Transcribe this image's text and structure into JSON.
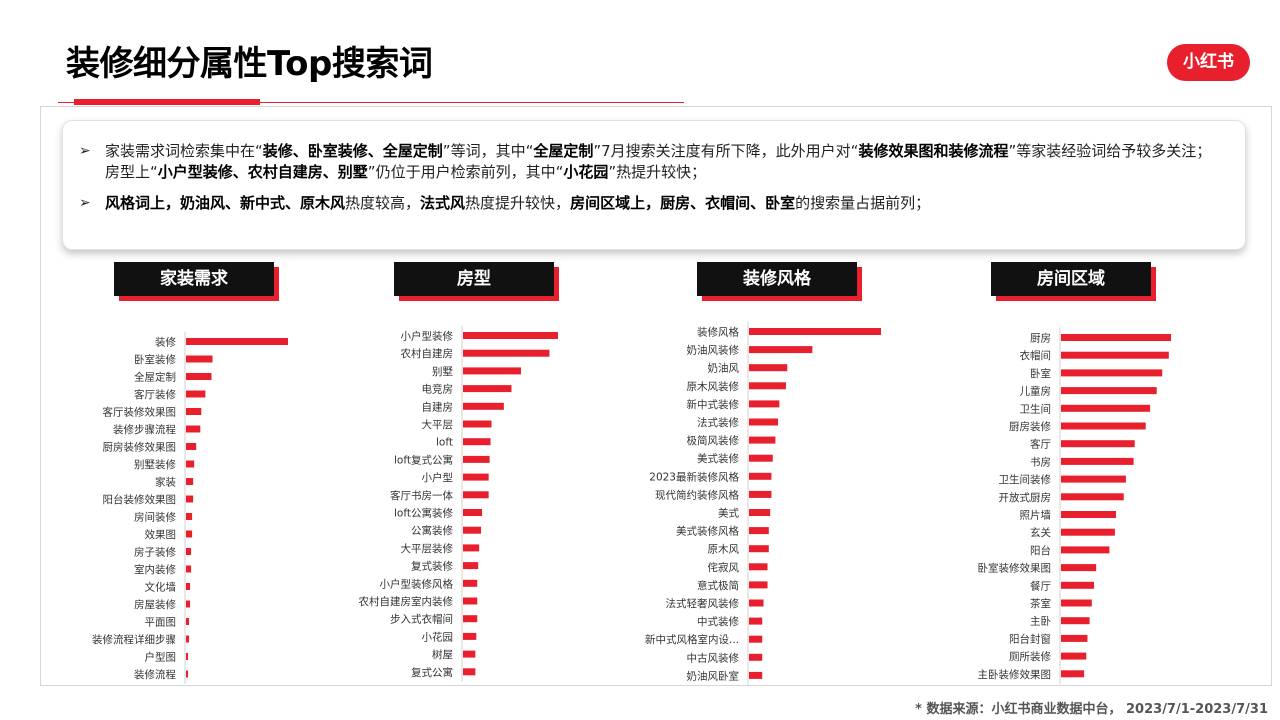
{
  "title": "装修细分属性Top搜索词",
  "logo": "小红书",
  "insights": [
    [
      {
        "t": "家装需求词检索集中在“"
      },
      {
        "t": "装修、卧室装修、全屋定制",
        "b": true
      },
      {
        "t": "”等词，其中“"
      },
      {
        "t": "全屋定制",
        "b": true
      },
      {
        "t": "”7月搜索关注度有所下降，此外用户对“"
      },
      {
        "t": "装修效果图和装修流程",
        "b": true
      },
      {
        "t": "”等家装经验词给予较多关注；房型上“"
      },
      {
        "t": "小户型装修、农村自建房、别墅",
        "b": true
      },
      {
        "t": "”仍位于用户检索前列，其中“"
      },
      {
        "t": "小花园",
        "b": true
      },
      {
        "t": "”热提升较快；"
      }
    ],
    [
      {
        "t": "风格词上，奶油风、新中式、原木风",
        "b": true
      },
      {
        "t": "热度较高，"
      },
      {
        "t": "法式风",
        "b": true
      },
      {
        "t": "热度提升较快，"
      },
      {
        "t": "房间区域上，厨房、衣帽间、卧室",
        "b": true
      },
      {
        "t": "的搜索量占据前列；"
      }
    ]
  ],
  "footer": "* 数据来源：小红书商业数据中台， 2023/7/1-2023/7/31",
  "colors": {
    "accent": "#e8202e",
    "header_bg": "#111111"
  },
  "chart_data": [
    {
      "type": "bar",
      "orientation": "horizontal",
      "title": "家装需求",
      "categories": [
        "装修",
        "卧室装修",
        "全屋定制",
        "客厅装修",
        "客厅装修效果图",
        "装修步骤流程",
        "厨房装修效果图",
        "别墅装修",
        "家装",
        "阳台装修效果图",
        "房间装修",
        "效果图",
        "房子装修",
        "室内装修",
        "文化墙",
        "房屋装修",
        "平面图",
        "装修流程详细步骤",
        "户型图",
        "装修流程"
      ],
      "values": [
        100,
        26,
        25,
        19,
        15,
        14,
        10,
        8,
        7,
        7,
        6,
        6,
        5,
        5,
        4,
        4,
        3,
        3,
        2,
        2
      ]
    },
    {
      "type": "bar",
      "orientation": "horizontal",
      "title": "房型",
      "categories": [
        "小户型装修",
        "农村自建房",
        "别墅",
        "电竞房",
        "自建房",
        "大平层",
        "loft",
        "loft复式公寓",
        "小户型",
        "客厅书房一体",
        "loft公寓装修",
        "公寓装修",
        "大平层装修",
        "复式装修",
        "小户型装修风格",
        "农村自建房室内装修",
        "步入式衣帽间",
        "小花园",
        "树屋",
        "复式公寓"
      ],
      "values": [
        100,
        91,
        61,
        51,
        43,
        30,
        29,
        28,
        27,
        27,
        20,
        19,
        17,
        16,
        15,
        15,
        15,
        14,
        13,
        13
      ]
    },
    {
      "type": "bar",
      "orientation": "horizontal",
      "title": "装修风格",
      "categories": [
        "装修风格",
        "奶油风装修",
        "奶油风",
        "原木风装修",
        "新中式装修",
        "法式装修",
        "极简风装修",
        "美式装修",
        "2023最新装修风格",
        "现代简约装修风格",
        "美式",
        "美式装修风格",
        "原木风",
        "侘寂风",
        "意式极简",
        "法式轻奢风装修",
        "中式装修",
        "新中式风格室内设...",
        "中古风装修",
        "奶油风卧室"
      ],
      "values": [
        100,
        48,
        29,
        28,
        23,
        22,
        20,
        18,
        17,
        17,
        16,
        15,
        15,
        14,
        14,
        11,
        10,
        10,
        10,
        10
      ]
    },
    {
      "type": "bar",
      "orientation": "horizontal",
      "title": "房间区域",
      "categories": [
        "厨房",
        "衣帽间",
        "卧室",
        "儿童房",
        "卫生间",
        "厨房装修",
        "客厅",
        "书房",
        "卫生间装修",
        "开放式厨房",
        "照片墙",
        "玄关",
        "阳台",
        "卧室装修效果图",
        "餐厅",
        "茶室",
        "主卧",
        "阳台封窗",
        "厕所装修",
        "主卧装修效果图"
      ],
      "values": [
        100,
        98,
        92,
        87,
        81,
        77,
        67,
        66,
        59,
        57,
        50,
        49,
        44,
        32,
        30,
        28,
        26,
        24,
        23,
        21
      ]
    }
  ]
}
